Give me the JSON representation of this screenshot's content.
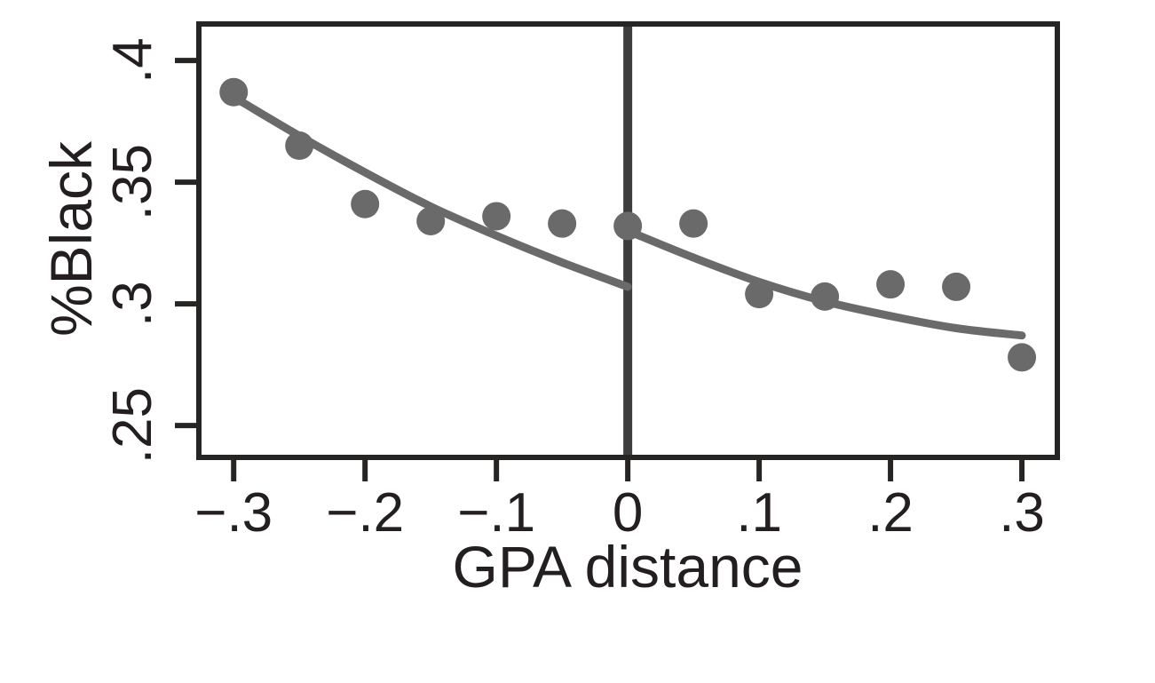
{
  "chart_data": {
    "type": "scatter",
    "title": "",
    "xlabel": "GPA distance",
    "ylabel": "%Black",
    "xlim": [
      -0.3265,
      0.327
    ],
    "ylim": [
      0.2369,
      0.415
    ],
    "grid": false,
    "legend": "none",
    "cutoff_x": 0,
    "x_ticks": [
      {
        "value": -0.3,
        "label": "−.3"
      },
      {
        "value": -0.2,
        "label": "−.2"
      },
      {
        "value": -0.1,
        "label": "−.1"
      },
      {
        "value": 0,
        "label": "0"
      },
      {
        "value": 0.1,
        "label": ".1"
      },
      {
        "value": 0.2,
        "label": ".2"
      },
      {
        "value": 0.3,
        "label": ".3"
      }
    ],
    "y_ticks": [
      {
        "value": 0.25,
        "label": ".25"
      },
      {
        "value": 0.3,
        "label": ".3"
      },
      {
        "value": 0.35,
        "label": ".35"
      },
      {
        "value": 0.4,
        "label": ".4"
      }
    ],
    "points": [
      [
        -0.3,
        0.387
      ],
      [
        -0.25,
        0.365
      ],
      [
        -0.2,
        0.341
      ],
      [
        -0.15,
        0.334
      ],
      [
        -0.1,
        0.336
      ],
      [
        -0.05,
        0.333
      ],
      [
        0.0,
        0.332
      ],
      [
        0.05,
        0.333
      ],
      [
        0.1,
        0.304
      ],
      [
        0.15,
        0.303
      ],
      [
        0.2,
        0.308
      ],
      [
        0.25,
        0.307
      ],
      [
        0.3,
        0.278
      ]
    ],
    "fit_lines": [
      {
        "name": "left-fit-line",
        "points": [
          [
            -0.3,
            0.385
          ],
          [
            -0.25,
            0.369
          ],
          [
            -0.2,
            0.354
          ],
          [
            -0.15,
            0.34
          ],
          [
            -0.1,
            0.328
          ],
          [
            -0.05,
            0.317
          ],
          [
            0.0,
            0.307
          ]
        ]
      },
      {
        "name": "right-fit-line",
        "points": [
          [
            0.0,
            0.33
          ],
          [
            0.05,
            0.319
          ],
          [
            0.1,
            0.309
          ],
          [
            0.15,
            0.301
          ],
          [
            0.2,
            0.295
          ],
          [
            0.25,
            0.29
          ],
          [
            0.3,
            0.287
          ]
        ]
      }
    ],
    "colors": {
      "marker": "#6a6a6a",
      "fit_line": "#6a6a6a",
      "cutoff_line": "#3d3d3d",
      "axis": "#262524",
      "text": "#231f20",
      "background": "#ffffff"
    }
  }
}
